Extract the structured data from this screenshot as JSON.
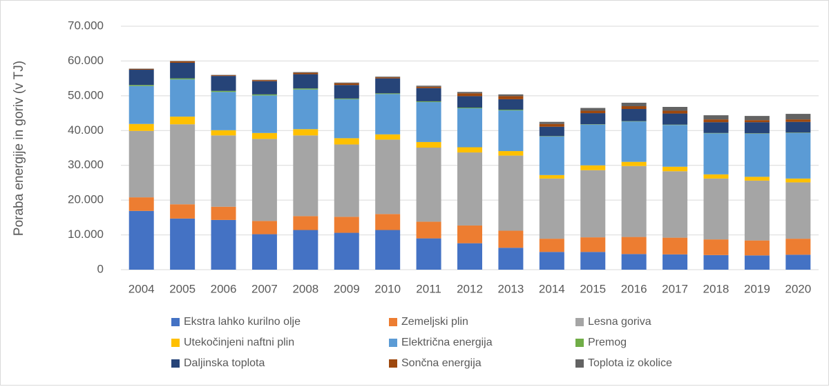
{
  "chart_data": {
    "type": "stacked-bar",
    "y_label": "Poraba energije in goriv (v TJ)",
    "categories": [
      "2004",
      "2005",
      "2006",
      "2007",
      "2008",
      "2009",
      "2010",
      "2011",
      "2012",
      "2013",
      "2014",
      "2015",
      "2016",
      "2017",
      "2018",
      "2019",
      "2020"
    ],
    "ylim": [
      0,
      70000
    ],
    "yticks": [
      0,
      {
        "value": 10000,
        "label": "10.000"
      },
      {
        "value": 20000,
        "label": "20.000"
      },
      {
        "value": 30000,
        "label": "30.000"
      },
      {
        "value": 40000,
        "label": "40.000"
      },
      {
        "value": 50000,
        "label": "50.000"
      },
      {
        "value": 60000,
        "label": "60.000"
      },
      {
        "value": 70000,
        "label": "70.000"
      }
    ],
    "grid": true,
    "legend": "bottom",
    "series": [
      {
        "name": "Ekstra lahko kurilno olje",
        "color": "#4472c4",
        "values": [
          16900,
          14700,
          14300,
          10200,
          11400,
          10600,
          11400,
          9000,
          7600,
          6300,
          5100,
          5100,
          4500,
          4400,
          4200,
          4100,
          4300
        ]
      },
      {
        "name": "Zemeljski plin",
        "color": "#ed7d31",
        "values": [
          3900,
          4100,
          3800,
          3800,
          4000,
          4600,
          4600,
          4800,
          5100,
          4900,
          3800,
          4200,
          4900,
          4800,
          4500,
          4300,
          4600
        ]
      },
      {
        "name": "Lesna goriva",
        "color": "#a5a5a5",
        "values": [
          19100,
          23000,
          20500,
          23600,
          23200,
          20800,
          21400,
          21300,
          21000,
          21600,
          17300,
          19300,
          20400,
          19100,
          17500,
          17200,
          16200
        ]
      },
      {
        "name": "Utekočinjeni naftni plin",
        "color": "#ffc000",
        "values": [
          2000,
          2200,
          1500,
          1700,
          1800,
          1800,
          1500,
          1600,
          1500,
          1300,
          1000,
          1400,
          1200,
          1300,
          1200,
          1100,
          1100
        ]
      },
      {
        "name": "Električna energija",
        "color": "#5b9bd5",
        "values": [
          10900,
          10700,
          11000,
          10800,
          11400,
          11200,
          11600,
          11500,
          11200,
          11700,
          11100,
          11700,
          11600,
          12000,
          11800,
          12400,
          13100
        ]
      },
      {
        "name": "Premog",
        "color": "#70ad47",
        "values": [
          300,
          300,
          300,
          300,
          300,
          200,
          200,
          200,
          200,
          200,
          100,
          100,
          100,
          100,
          100,
          100,
          100
        ]
      },
      {
        "name": "Daljinska toplota",
        "color": "#264478",
        "values": [
          4400,
          4500,
          4300,
          3800,
          4100,
          3900,
          4300,
          3800,
          3300,
          3000,
          2700,
          3200,
          3500,
          3200,
          3100,
          3200,
          3100
        ]
      },
      {
        "name": "Sončna energija",
        "color": "#9e480e",
        "values": [
          200,
          400,
          200,
          300,
          400,
          500,
          300,
          400,
          800,
          900,
          800,
          700,
          800,
          800,
          800,
          600,
          700
        ]
      },
      {
        "name": "Toplota iz okolice",
        "color": "#636363",
        "values": [
          100,
          100,
          100,
          100,
          200,
          200,
          200,
          300,
          400,
          500,
          600,
          800,
          1000,
          1100,
          1200,
          1200,
          1600
        ]
      }
    ]
  }
}
